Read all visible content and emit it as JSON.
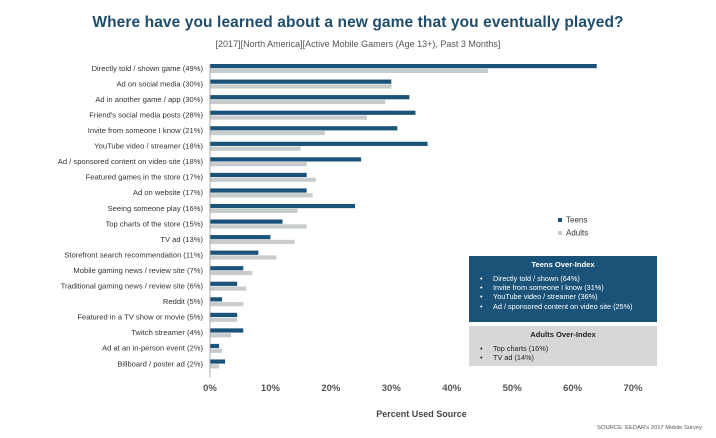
{
  "title": "Where have you learned about a new game that you eventually played?",
  "subtitle": "[2017][North America][Active Mobile Gamers (Age 13+), Past 3 Months]",
  "chart_data": {
    "type": "bar",
    "orientation": "horizontal",
    "title": "Where have you learned about a new game that you eventually played?",
    "xlabel": "Percent Used Source",
    "xlim": [
      0,
      70
    ],
    "xticks": [
      "0%",
      "10%",
      "20%",
      "30%",
      "40%",
      "50%",
      "60%",
      "70%"
    ],
    "grid": false,
    "legend_position": "right",
    "categories": [
      "Directly told / shown game (49%)",
      "Ad on social media (30%)",
      "Ad in another game / app (30%)",
      "Friend's social media posts (28%)",
      "Invite from someone I know (21%)",
      "YouTube video / streamer (18%)",
      "Ad / sponsored content on video site (18%)",
      "Featured games in the store (17%)",
      "Ad on website (17%)",
      "Seeing someone play (16%)",
      "Top charts of the store (15%)",
      "TV ad (13%)",
      "Storefront search recommendation (11%)",
      "Mobile gaming news / review site (7%)",
      "Traditional gaming news / review site (6%)",
      "Reddit (5%)",
      "Featured in a TV show or movie (5%)",
      "Twitch streamer (4%)",
      "Ad at an in-person event (2%)",
      "Billboard / poster ad (2%)"
    ],
    "series": [
      {
        "name": "Teens",
        "color": "#1a5377",
        "values": [
          64,
          30,
          33,
          34,
          31,
          36,
          25,
          16,
          16,
          24,
          12,
          10,
          8,
          5.5,
          4.5,
          2,
          4.5,
          5.5,
          1.5,
          2.5
        ]
      },
      {
        "name": "Adults",
        "color": "#c9cccc",
        "values": [
          46,
          30,
          29,
          26,
          19,
          15,
          16,
          17.5,
          17,
          14.5,
          16,
          14,
          11,
          7,
          6,
          5.5,
          4.5,
          3.5,
          2,
          1.5
        ]
      }
    ]
  },
  "teens_box": {
    "title": "Teens Over-Index",
    "items": [
      "Directly told / shown (64%)",
      "Invite from someone I know (31%)",
      "YouTube video / streamer (36%)",
      "Ad / sponsored content on video site (25%)"
    ]
  },
  "adults_box": {
    "title": "Adults Over-Index",
    "items": [
      "Top charts (16%)",
      "TV ad (14%)"
    ]
  },
  "source": "SOURCE: EEDAR's 2017 Mobile Survey"
}
